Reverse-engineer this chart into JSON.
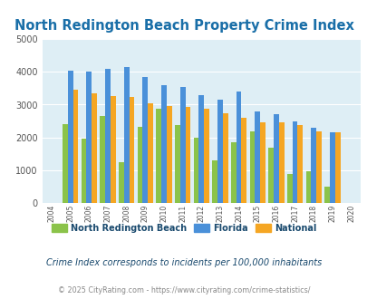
{
  "title": "North Redington Beach Property Crime Index",
  "years": [
    2004,
    2005,
    2006,
    2007,
    2008,
    2009,
    2010,
    2011,
    2012,
    2013,
    2014,
    2015,
    2016,
    2017,
    2018,
    2019,
    2020
  ],
  "north_redington": [
    null,
    2400,
    1975,
    2650,
    1250,
    2325,
    2875,
    2375,
    2000,
    1300,
    1850,
    2200,
    1700,
    900,
    975,
    500,
    null
  ],
  "florida": [
    null,
    4025,
    4000,
    4100,
    4150,
    3850,
    3600,
    3525,
    3300,
    3150,
    3400,
    2800,
    2700,
    2500,
    2300,
    2150,
    null
  ],
  "national": [
    null,
    3450,
    3350,
    3250,
    3225,
    3050,
    2950,
    2925,
    2875,
    2725,
    2600,
    2475,
    2450,
    2375,
    2200,
    2150,
    null
  ],
  "bar_colors": {
    "north_redington": "#8bc34a",
    "florida": "#4a90d9",
    "national": "#f5a623"
  },
  "background_color": "#deeef5",
  "ylim": [
    0,
    5000
  ],
  "yticks": [
    0,
    1000,
    2000,
    3000,
    4000,
    5000
  ],
  "subtitle": "Crime Index corresponds to incidents per 100,000 inhabitants",
  "footer": "© 2025 CityRating.com - https://www.cityrating.com/crime-statistics/",
  "legend_labels": [
    "North Redington Beach",
    "Florida",
    "National"
  ],
  "title_color": "#1a6fa8",
  "subtitle_color": "#1a4a6e",
  "footer_color": "#888888",
  "legend_text_color": "#1a4a6e"
}
